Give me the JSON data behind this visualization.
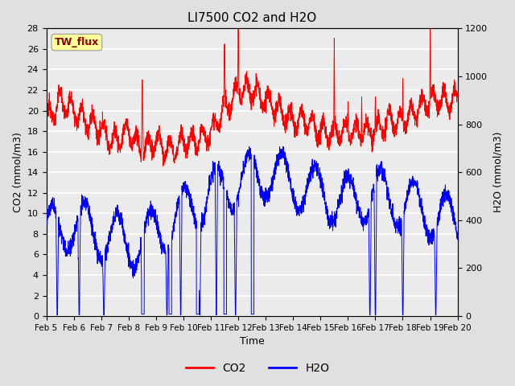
{
  "title": "LI7500 CO2 and H2O",
  "xlabel": "Time",
  "ylabel_left": "CO2 (mmol/m3)",
  "ylabel_right": "H2O (mmol/m3)",
  "annotation": "TW_flux",
  "annotation_color": "#8B0000",
  "annotation_bg": "#FFFF99",
  "xlim": [
    0,
    15
  ],
  "ylim_left": [
    0,
    28
  ],
  "ylim_right": [
    0,
    1200
  ],
  "yticks_left": [
    0,
    2,
    4,
    6,
    8,
    10,
    12,
    14,
    16,
    18,
    20,
    22,
    24,
    26,
    28
  ],
  "yticks_right": [
    0,
    200,
    400,
    600,
    800,
    1000,
    1200
  ],
  "xtick_labels": [
    "Feb 5",
    "Feb 6",
    "Feb 7",
    "Feb 8",
    "Feb 9",
    "Feb 10",
    "Feb 11",
    "Feb 12",
    "Feb 13",
    "Feb 14",
    "Feb 15",
    "Feb 16",
    "Feb 17",
    "Feb 18",
    "Feb 19",
    "Feb 20"
  ],
  "co2_color": "red",
  "h2o_color": "blue",
  "bg_color": "#E0E0E0",
  "plot_bg": "#EBEBEB",
  "grid_color": "white",
  "legend_co2": "CO2",
  "legend_h2o": "H2O"
}
